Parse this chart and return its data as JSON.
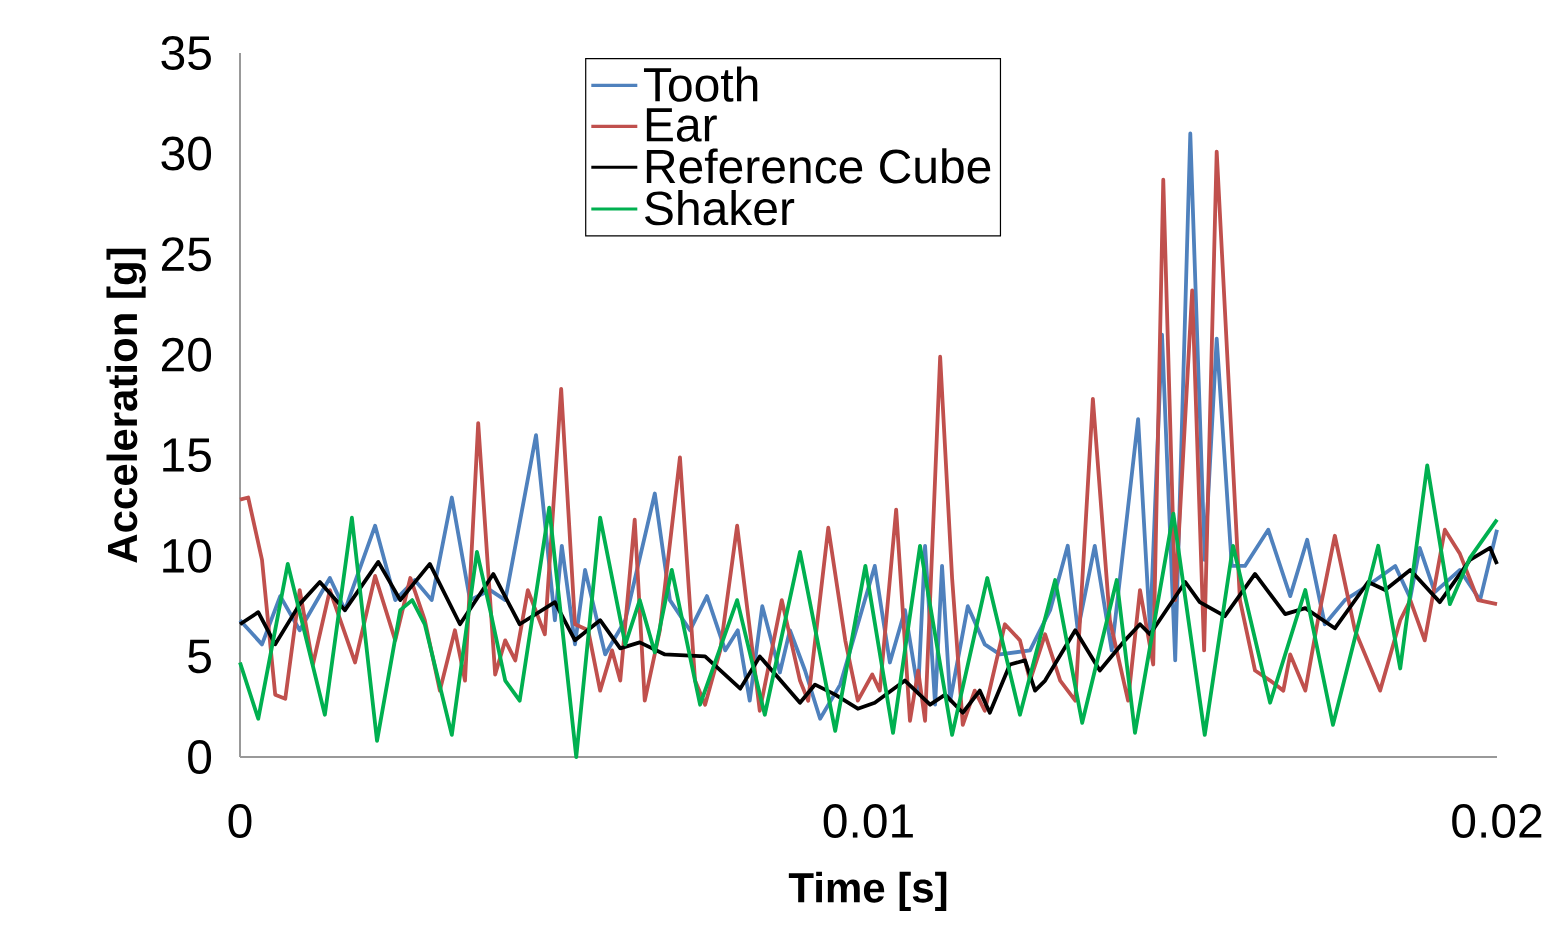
{
  "chart_data": {
    "type": "line",
    "xlabel": "Time [s]",
    "ylabel": "Acceleration [g]",
    "xlim": [
      0,
      0.02
    ],
    "ylim": [
      0,
      35
    ],
    "xticks": [
      0,
      0.01,
      0.02
    ],
    "yticks": [
      0,
      5,
      10,
      15,
      20,
      25,
      30,
      35
    ],
    "grid": false,
    "legend": "top",
    "marker": "none",
    "line_style": "solid",
    "series": [
      {
        "name": "Tooth",
        "color": "#4f81bd",
        "x": [
          0,
          0.00035,
          0.00064,
          0.00095,
          0.00143,
          0.00167,
          0.00215,
          0.00247,
          0.00278,
          0.00305,
          0.00337,
          0.00366,
          0.00398,
          0.00422,
          0.00471,
          0.00501,
          0.00512,
          0.00533,
          0.00549,
          0.00581,
          0.00613,
          0.0066,
          0.00684,
          0.00716,
          0.00743,
          0.00772,
          0.00792,
          0.00811,
          0.00831,
          0.00859,
          0.00875,
          0.00899,
          0.00923,
          0.00955,
          0.00983,
          0.0101,
          0.01034,
          0.01058,
          0.01079,
          0.0109,
          0.01106,
          0.01117,
          0.0113,
          0.01158,
          0.01185,
          0.01209,
          0.01257,
          0.01289,
          0.01317,
          0.01333,
          0.0136,
          0.01387,
          0.01429,
          0.01448,
          0.01467,
          0.01488,
          0.01512,
          0.01535,
          0.01554,
          0.01578,
          0.01599,
          0.01636,
          0.01671,
          0.01698,
          0.01726,
          0.01758,
          0.01798,
          0.01838,
          0.01862,
          0.01877,
          0.01901,
          0.01941,
          0.01973,
          0.02
        ],
        "values": [
          6.8,
          5.6,
          8,
          6.3,
          8.9,
          7.3,
          11.5,
          7.8,
          8.8,
          7.8,
          12.9,
          7.8,
          8.3,
          7.8,
          16,
          6.8,
          10.5,
          5.6,
          9.3,
          5.1,
          6.8,
          13.1,
          7.8,
          6.3,
          8,
          5.3,
          6.3,
          2.8,
          7.5,
          4.2,
          6.3,
          4.3,
          1.9,
          3.6,
          6.6,
          9.5,
          4.7,
          7.3,
          3.3,
          10.5,
          2.6,
          9.5,
          2.8,
          7.5,
          5.6,
          5.1,
          5.3,
          7.3,
          10.5,
          6.3,
          10.5,
          5.3,
          16.8,
          6.3,
          21,
          4.8,
          31,
          9.8,
          20.8,
          9.5,
          9.5,
          11.3,
          8,
          10.8,
          6.6,
          7.8,
          8.6,
          9.5,
          7.9,
          10.4,
          8.2,
          9.3,
          7.8,
          11.3
        ]
      },
      {
        "name": "Ear",
        "color": "#c0504d",
        "x": [
          0,
          0.00013,
          0.00035,
          0.00056,
          0.00072,
          0.00095,
          0.00116,
          0.00143,
          0.00183,
          0.00215,
          0.00247,
          0.00271,
          0.00294,
          0.00318,
          0.00342,
          0.00358,
          0.00379,
          0.00406,
          0.00422,
          0.00438,
          0.00458,
          0.00485,
          0.00511,
          0.00533,
          0.00554,
          0.00573,
          0.00592,
          0.00605,
          0.00628,
          0.00644,
          0.00668,
          0.007,
          0.00724,
          0.0074,
          0.00764,
          0.00791,
          0.00827,
          0.00862,
          0.00891,
          0.00904,
          0.00936,
          0.00963,
          0.00983,
          0.01006,
          0.01018,
          0.01044,
          0.01066,
          0.01079,
          0.0109,
          0.01114,
          0.01133,
          0.0115,
          0.01169,
          0.01185,
          0.01217,
          0.01241,
          0.01257,
          0.01281,
          0.01305,
          0.01329,
          0.01357,
          0.01384,
          0.01413,
          0.01432,
          0.01453,
          0.01469,
          0.01488,
          0.01515,
          0.01534,
          0.01554,
          0.01591,
          0.01615,
          0.01639,
          0.0166,
          0.01671,
          0.01695,
          0.01715,
          0.01742,
          0.01774,
          0.01814,
          0.01846,
          0.01862,
          0.01885,
          0.01917,
          0.01941,
          0.0197,
          0.02
        ],
        "values": [
          12.8,
          12.9,
          9.8,
          3.1,
          2.9,
          8.3,
          4.6,
          8.3,
          4.7,
          9,
          5.8,
          8.9,
          6.8,
          3.3,
          6.3,
          3.8,
          16.6,
          4.1,
          5.8,
          4.8,
          8.3,
          6.1,
          18.3,
          6.6,
          6.3,
          3.3,
          5.3,
          3.8,
          11.8,
          2.8,
          6.3,
          14.9,
          3.8,
          2.6,
          5.3,
          11.5,
          2.3,
          7.8,
          3.8,
          2.8,
          11.4,
          5.8,
          2.8,
          4.1,
          3.3,
          12.3,
          1.8,
          4.3,
          1.8,
          19.9,
          8.9,
          1.6,
          3.3,
          2.3,
          6.6,
          5.8,
          3.8,
          6.1,
          3.8,
          2.8,
          17.8,
          6.8,
          2.8,
          8.3,
          4.6,
          28.7,
          7.8,
          23.2,
          5.3,
          30.1,
          7.8,
          4.3,
          3.8,
          3.3,
          5.1,
          3.3,
          6.8,
          11,
          6.3,
          3.3,
          6.8,
          7.8,
          5.8,
          11.3,
          10.1,
          7.8,
          7.6
        ]
      },
      {
        "name": "Reference Cube",
        "color": "#000000",
        "x": [
          0,
          0.00029,
          0.00056,
          0.00095,
          0.00127,
          0.00167,
          0.0022,
          0.00255,
          0.00302,
          0.0035,
          0.00403,
          0.00445,
          0.00501,
          0.00533,
          0.00573,
          0.00605,
          0.00636,
          0.00676,
          0.0074,
          0.00796,
          0.00827,
          0.00891,
          0.00915,
          0.00947,
          0.00983,
          0.0101,
          0.01058,
          0.01098,
          0.01122,
          0.0115,
          0.01177,
          0.01193,
          0.01225,
          0.01249,
          0.01265,
          0.01281,
          0.01329,
          0.01368,
          0.01408,
          0.01432,
          0.01448,
          0.01504,
          0.01527,
          0.01567,
          0.01615,
          0.01663,
          0.01695,
          0.01742,
          0.01795,
          0.01822,
          0.01862,
          0.01909,
          0.01957,
          0.01989,
          0.02
        ],
        "values": [
          6.6,
          7.2,
          5.6,
          7.6,
          8.7,
          7.3,
          9.7,
          7.8,
          9.6,
          6.6,
          9.1,
          6.6,
          7.7,
          5.8,
          6.8,
          5.4,
          5.7,
          5.1,
          5,
          3.4,
          5,
          2.7,
          3.6,
          3.1,
          2.4,
          2.7,
          3.8,
          2.6,
          3.1,
          2.2,
          3.3,
          2.2,
          4.6,
          4.8,
          3.3,
          3.8,
          6.3,
          4.3,
          5.8,
          6.6,
          6.1,
          8.7,
          7.7,
          7,
          9.1,
          7.1,
          7.4,
          6.4,
          8.7,
          8.3,
          9.3,
          7.7,
          9.8,
          10.4,
          9.6
        ]
      },
      {
        "name": "Shaker",
        "color": "#00b050",
        "x": [
          0,
          0.00029,
          0.00076,
          0.00135,
          0.00178,
          0.00218,
          0.00255,
          0.00274,
          0.00294,
          0.00337,
          0.00377,
          0.00398,
          0.00422,
          0.00445,
          0.00492,
          0.00535,
          0.00573,
          0.00613,
          0.00636,
          0.0066,
          0.00687,
          0.00732,
          0.00791,
          0.00835,
          0.00891,
          0.00947,
          0.00995,
          0.01039,
          0.01082,
          0.01133,
          0.01189,
          0.01241,
          0.01297,
          0.0134,
          0.01395,
          0.01424,
          0.01485,
          0.01535,
          0.0158,
          0.01639,
          0.01695,
          0.01739,
          0.01811,
          0.01846,
          0.01889,
          0.01925,
          0.01957,
          0.02
        ],
        "values": [
          4.7,
          1.9,
          9.6,
          2.1,
          11.9,
          0.8,
          7.3,
          7.8,
          6.6,
          1.1,
          10.2,
          7.3,
          3.8,
          2.8,
          12.4,
          0,
          11.9,
          5.6,
          7.8,
          5.2,
          9.3,
          2.6,
          7.8,
          2.1,
          10.2,
          1.3,
          9.5,
          1.2,
          10.5,
          1.1,
          8.9,
          2.1,
          8.8,
          1.7,
          8.8,
          1.2,
          12.1,
          1.1,
          10.5,
          2.7,
          8.3,
          1.6,
          10.5,
          4.4,
          14.5,
          7.6,
          9.9,
          11.8
        ]
      }
    ]
  }
}
